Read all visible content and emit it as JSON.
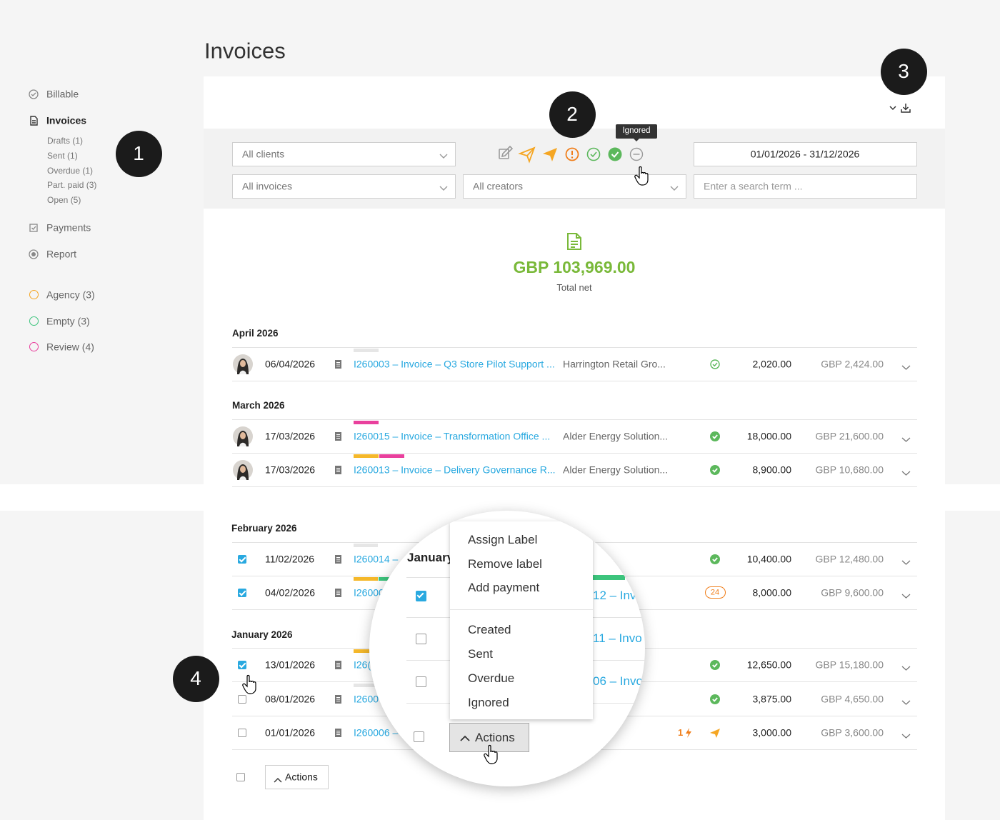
{
  "page": {
    "title": "Invoices"
  },
  "sidebar": {
    "nav": [
      "Billable",
      "Invoices",
      "Payments",
      "Report"
    ],
    "invoice_filters": [
      "Drafts (1)",
      "Sent (1)",
      "Overdue (1)",
      "Part. paid (3)",
      "Open (5)"
    ],
    "labels": [
      "Agency (3)",
      "Empty (3)",
      "Review (4)"
    ]
  },
  "callouts": [
    "1",
    "2",
    "3",
    "4"
  ],
  "filters": {
    "clients": "All clients",
    "invoices": "All invoices",
    "creators": "All creators",
    "date_range": "01/01/2026 - 31/12/2026",
    "search_placeholder": "Enter a search term ...",
    "tooltip": "Ignored"
  },
  "summary": {
    "amount": "GBP 103,969.00",
    "label": "Total net"
  },
  "groups_top": [
    {
      "month": "April 2026",
      "rows": [
        {
          "date": "06/04/2026",
          "invoice": "I260003 – Invoice – Q3 Store Pilot Support ...",
          "client": "Harrington Retail Gro...",
          "net": "2,020.00",
          "gross": "GBP 2,424.00"
        }
      ]
    },
    {
      "month": "March 2026",
      "rows": [
        {
          "date": "17/03/2026",
          "invoice": "I260015 – Invoice – Transformation Office ...",
          "client": "Alder Energy Solution...",
          "net": "18,000.00",
          "gross": "GBP 21,600.00"
        },
        {
          "date": "17/03/2026",
          "invoice": "I260013 – Invoice – Delivery Governance R...",
          "client": "Alder Energy Solution...",
          "net": "8,900.00",
          "gross": "GBP 10,680.00"
        }
      ]
    }
  ],
  "groups_bottom": [
    {
      "month": "February 2026",
      "rows": [
        {
          "date": "11/02/2026",
          "invoice": "I260014 – ",
          "client": "y Solution...",
          "net": "10,400.00",
          "gross": "GBP 12,480.00"
        },
        {
          "date": "04/02/2026",
          "invoice": "I26000",
          "client": "lution...",
          "badge": "24",
          "net": "8,000.00",
          "gross": "GBP 9,600.00"
        }
      ]
    },
    {
      "month": "January 2026",
      "rows": [
        {
          "date": "13/01/2026",
          "invoice": "I26(",
          "client": "al S...",
          "net": "12,650.00",
          "gross": "GBP 15,180.00"
        },
        {
          "date": "08/01/2026",
          "invoice": "I2600",
          "client": "n Par...",
          "net": "3,875.00",
          "gross": "GBP 4,650.00"
        },
        {
          "date": "01/01/2026",
          "invoice": "I260006 – ",
          "client": "etail Gro...",
          "badge": "1",
          "net": "3,000.00",
          "gross": "GBP 3,600.00"
        }
      ]
    }
  ],
  "actions_button": "Actions",
  "zoom": {
    "month": "January",
    "invoices": [
      "12 – Inv",
      "11 – Invo",
      "06 – Invo"
    ],
    "menu_top": [
      "Assign Label",
      "Remove label",
      "Add payment"
    ],
    "menu_status": [
      "Created",
      "Sent",
      "Overdue",
      "Ignored"
    ],
    "button": "Actions"
  }
}
